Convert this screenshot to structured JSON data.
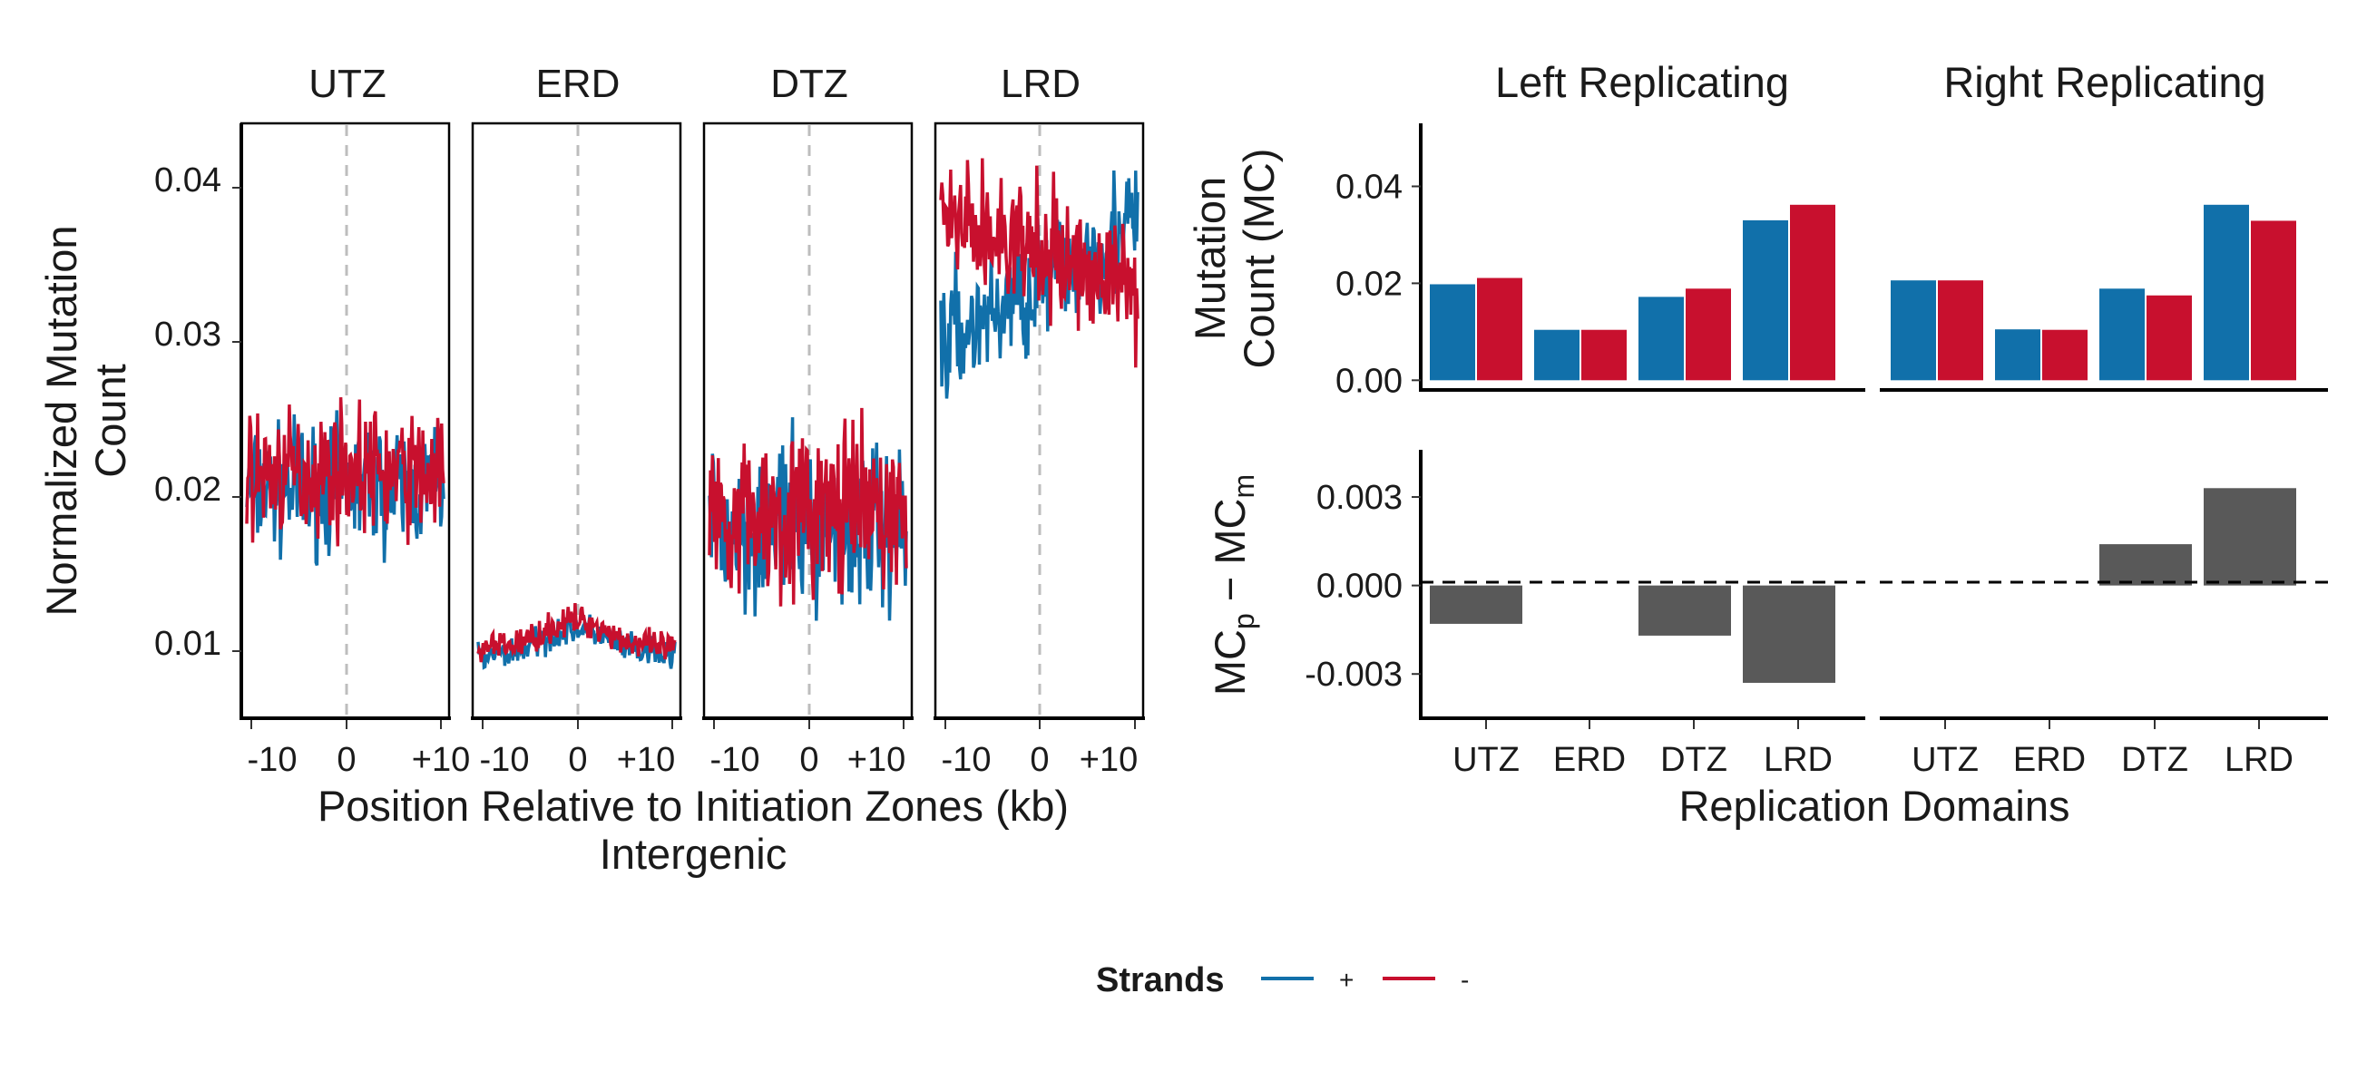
{
  "colors": {
    "plus": "#1170aa",
    "minus": "#c8102e",
    "diff_bar": "#595959"
  },
  "left": {
    "panels": [
      "UTZ",
      "ERD",
      "DTZ",
      "LRD"
    ],
    "xlabel": "Position Relative to Initiation Zones (kb)",
    "subtitle": "Intergenic",
    "ylabel_line1": "Normalized Mutation",
    "ylabel_line2": "Count",
    "yticks": [
      "0.01",
      "0.02",
      "0.03",
      "0.04"
    ],
    "xticks": [
      "-10",
      "0",
      "+10"
    ]
  },
  "right": {
    "facets": [
      "Left Replicating",
      "Right Replicating"
    ],
    "top_ylabel_line1": "Mutation",
    "top_ylabel_line2": "Count (MC)",
    "top_yticks": [
      "0.00",
      "0.02",
      "0.04"
    ],
    "bottom_ylabel": {
      "a": "MC",
      "p": "p",
      "dash": " − MC",
      "m": "m"
    },
    "bottom_yticks": [
      "-0.003",
      "0.000",
      "0.003"
    ],
    "xticks": [
      "UTZ",
      "ERD",
      "DTZ",
      "LRD"
    ],
    "xlabel": "Replication Domains"
  },
  "legend": {
    "title": "Strands",
    "plus_label": "+",
    "minus_label": "-"
  },
  "chart_data": [
    {
      "type": "line",
      "facets": [
        "UTZ",
        "ERD",
        "DTZ",
        "LRD"
      ],
      "x_range_kb": [
        -10,
        10
      ],
      "ylim": [
        0.0055,
        0.0445
      ],
      "series": [
        {
          "name": "+",
          "mean": [
            0.0205,
            0.0105,
            0.018,
            0.034
          ]
        },
        {
          "name": "-",
          "mean": [
            0.0215,
            0.011,
            0.019,
            0.036
          ]
        }
      ],
      "xlabel": "Position Relative to Initiation Zones (kb)",
      "ylabel": "Normalized Mutation Count",
      "subtitle": "Intergenic"
    },
    {
      "type": "bar",
      "facets": [
        "Left Replicating",
        "Right Replicating"
      ],
      "categories": [
        "UTZ",
        "ERD",
        "DTZ",
        "LRD"
      ],
      "series": [
        {
          "name": "+",
          "values_by_facet": [
            [
              0.0198,
              0.0104,
              0.0172,
              0.033
            ],
            [
              0.0206,
              0.0105,
              0.0189,
              0.0362
            ]
          ]
        },
        {
          "name": "-",
          "values_by_facet": [
            [
              0.0211,
              0.0104,
              0.0189,
              0.0362
            ],
            [
              0.0206,
              0.0104,
              0.0175,
              0.0329
            ]
          ]
        }
      ],
      "ylabel": "Mutation Count (MC)",
      "ylim": [
        -0.002,
        0.053
      ]
    },
    {
      "type": "bar",
      "facets": [
        "Left Replicating",
        "Right Replicating"
      ],
      "categories": [
        "UTZ",
        "ERD",
        "DTZ",
        "LRD"
      ],
      "values_by_facet": [
        [
          -0.0013,
          0.0,
          -0.0017,
          -0.0033
        ],
        [
          0.0,
          0.0,
          0.0014,
          0.0033
        ]
      ],
      "ylabel": "MCp − MCm",
      "ylim": [
        -0.0045,
        0.0046
      ],
      "xlabel": "Replication Domains"
    }
  ]
}
